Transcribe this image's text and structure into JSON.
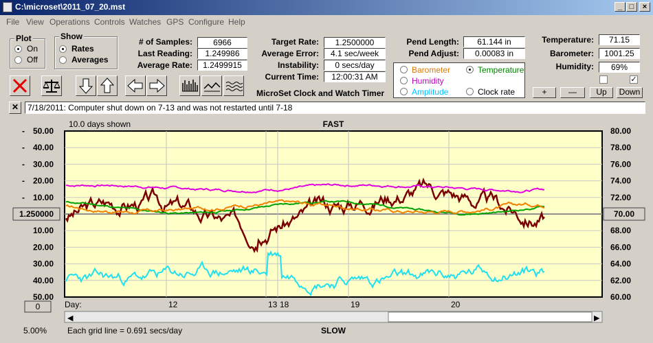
{
  "window": {
    "title": "C:\\microset\\2011_07_20.mst"
  },
  "menu": [
    "File",
    "View",
    "Operations",
    "Controls",
    "Watches",
    "GPS",
    "Configure",
    "Help"
  ],
  "plot_group": {
    "title": "Plot",
    "options": [
      "On",
      "Off"
    ],
    "selected": "On"
  },
  "show_group": {
    "title": "Show",
    "options": [
      "Rates",
      "Averages"
    ],
    "selected": "Rates"
  },
  "stats": {
    "samples_label": "# of Samples:",
    "samples": "6966",
    "last_label": "Last Reading:",
    "last": "1.249986",
    "avg_label": "Average Rate:",
    "avg": "1.2499915",
    "target_label": "Target Rate:",
    "target": "1.2500000",
    "avgerr_label": "Average Error:",
    "avgerr": "4.1 sec/week",
    "instab_label": "Instability:",
    "instab": "0 secs/day",
    "time_label": "Current Time:",
    "time": "12:00:31 AM",
    "pendlen_label": "Pend Length:",
    "pendlen": "61.144 in",
    "pendadj_label": "Pend Adjust:",
    "pendadj": "0.00083 in",
    "temp_label": "Temperature:",
    "temp": "71.15",
    "baro_label": "Barometer:",
    "baro": "1001.25",
    "humid_label": "Humidity:",
    "humid": "69%"
  },
  "app_caption": "MicroSet Clock and Watch Timer",
  "sensors": {
    "items": [
      {
        "label": "Barometer",
        "color": "#e07800"
      },
      {
        "label": "Temperature",
        "color": "#008000"
      },
      {
        "label": "Humidity",
        "color": "#c000c0"
      },
      {
        "label": "Clock rate",
        "color": "#000000"
      },
      {
        "label": "Amplitude",
        "color": "#00c0ff"
      }
    ],
    "selected": "Temperature"
  },
  "scale_buttons": [
    "+",
    "—",
    "Up",
    "Down"
  ],
  "note": "7/18/2011: Computer shut down on 7-13 and was not restarted until 7-18",
  "chart_data": {
    "type": "line",
    "title": "FAST",
    "bottom_label": "SLOW",
    "days_shown": "10.0 days shown",
    "day_label": "Day:",
    "day_ticks": [
      "12",
      "13",
      "18",
      "19",
      "20"
    ],
    "center_value": "1.250000",
    "left_ticks": [
      "50.00",
      "40.00",
      "30.00",
      "20.00",
      "10.00",
      "",
      "10.00",
      "20.00",
      "30.00",
      "40.00",
      "50.00"
    ],
    "left_signs": [
      "-",
      "-",
      "-",
      "-",
      "-",
      "",
      "",
      "",
      "",
      "",
      ""
    ],
    "right_ticks": [
      "80.00",
      "78.00",
      "76.00",
      "74.00",
      "72.00",
      "70.00",
      "68.00",
      "66.00",
      "64.00",
      "62.00",
      "60.00"
    ],
    "right_center": "70.00",
    "left_bottom_box": "0",
    "grid_note": "Each grid line = 0.691 secs/day",
    "zoom": "5.00%",
    "series": [
      {
        "name": "Clock rate",
        "color": "#7a0000",
        "base": -1.5,
        "amp": 11,
        "noise": 3.5,
        "seed": 3
      },
      {
        "name": "Humidity",
        "color": "#e000e0",
        "base": 16,
        "amp": 3,
        "noise": 0.5,
        "seed": 7
      },
      {
        "name": "Temperature",
        "color": "#00a000",
        "base": 4,
        "amp": 7,
        "noise": 0.4,
        "seed": 11
      },
      {
        "name": "Barometer",
        "color": "#f08000",
        "base": 4,
        "amp": 5,
        "noise": 0.8,
        "seed": 17
      },
      {
        "name": "Amplitude",
        "color": "#20e0f0",
        "base": -37,
        "amp": 5,
        "noise": 2.5,
        "seed": 23
      }
    ]
  }
}
